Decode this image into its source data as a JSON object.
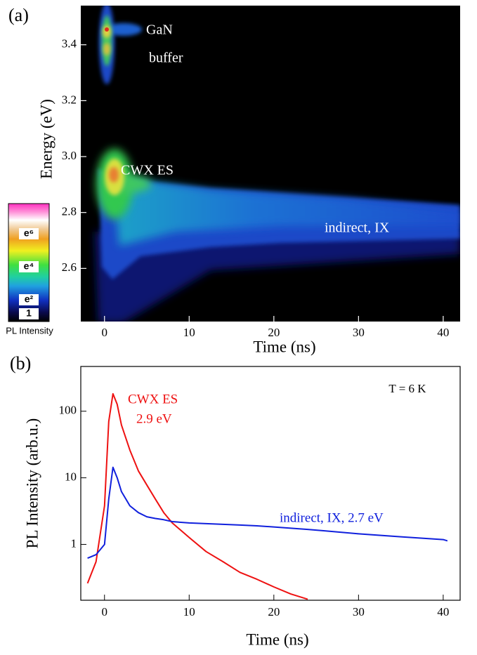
{
  "chart_data": [
    {
      "type": "heatmap",
      "panel_label": "(a)",
      "xlabel": "Time  (ns)",
      "ylabel": "Energy  (eV)",
      "xlim": [
        -2.8,
        42
      ],
      "xticks": [
        0,
        10,
        20,
        30,
        40
      ],
      "ylim": [
        2.41,
        3.54
      ],
      "yticks": [
        2.6,
        2.8,
        {
          "value": 3,
          "label": "3.0"
        },
        3.2,
        3.4
      ],
      "annotations": [
        "GaN",
        "buffer",
        "CWX ES",
        "indirect, IX"
      ],
      "colorbar": {
        "label": "PL Intensity",
        "scale": "log",
        "ticks": [
          {
            "value": 1,
            "label": "1"
          },
          {
            "value": 7.389,
            "label": "e²"
          },
          {
            "value": 54.6,
            "label": "e⁴"
          },
          {
            "value": 403.4,
            "label": "e⁶"
          }
        ]
      }
    },
    {
      "type": "line",
      "panel_label": "(b)",
      "xlabel": "Time  (ns)",
      "ylabel": "PL Intensity (arb.u.)",
      "annotation": "T = 6 K",
      "log_y": true,
      "xlim": [
        -2.8,
        42
      ],
      "xticks": [
        0,
        10,
        20,
        30,
        40
      ],
      "ylim": [
        0.145,
        470
      ],
      "yticks": [
        1,
        10,
        100
      ],
      "x": [
        -2,
        -1,
        0,
        0.5,
        1,
        1.5,
        2,
        3,
        4,
        5,
        6,
        7,
        8,
        10,
        12,
        14,
        16,
        18,
        20,
        22,
        24,
        26,
        30,
        35,
        40,
        40.5
      ],
      "series": [
        {
          "name": "CWX ES",
          "subtitle": "2.9 eV",
          "color": "#ee1111",
          "values": [
            0.26,
            0.55,
            3.8,
            70,
            183,
            127,
            62,
            26,
            12.7,
            7.8,
            4.8,
            3.0,
            2.1,
            1.27,
            0.78,
            0.55,
            0.38,
            0.3,
            0.23,
            0.18,
            0.15,
            null,
            null,
            null,
            null,
            null
          ]
        },
        {
          "name": "indirect, IX, 2.7 eV",
          "color": "#1020dd",
          "values": [
            0.62,
            0.7,
            1.0,
            4.8,
            14.4,
            10,
            6.2,
            3.8,
            3.0,
            2.6,
            2.45,
            2.35,
            2.2,
            2.1,
            2.05,
            2.0,
            1.95,
            1.9,
            1.83,
            1.75,
            1.68,
            1.6,
            1.44,
            1.3,
            1.18,
            1.13
          ]
        }
      ]
    }
  ]
}
